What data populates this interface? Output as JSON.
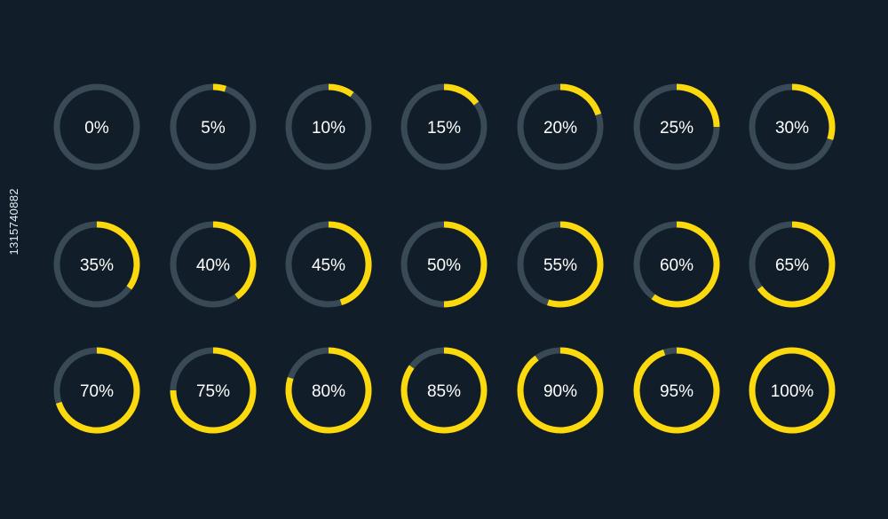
{
  "colors": {
    "background": "#111d28",
    "track": "#3a4956",
    "progress": "#fbd90c",
    "label": "#ffffff"
  },
  "rings": [
    {
      "label": "0%",
      "value": 0
    },
    {
      "label": "5%",
      "value": 5
    },
    {
      "label": "10%",
      "value": 10
    },
    {
      "label": "15%",
      "value": 15
    },
    {
      "label": "20%",
      "value": 20
    },
    {
      "label": "25%",
      "value": 25
    },
    {
      "label": "30%",
      "value": 30
    },
    {
      "label": "35%",
      "value": 35
    },
    {
      "label": "40%",
      "value": 40
    },
    {
      "label": "45%",
      "value": 45
    },
    {
      "label": "50%",
      "value": 50
    },
    {
      "label": "55%",
      "value": 55
    },
    {
      "label": "60%",
      "value": 60
    },
    {
      "label": "65%",
      "value": 65
    },
    {
      "label": "70%",
      "value": 70
    },
    {
      "label": "75%",
      "value": 75
    },
    {
      "label": "80%",
      "value": 80
    },
    {
      "label": "85%",
      "value": 85
    },
    {
      "label": "90%",
      "value": 90
    },
    {
      "label": "95%",
      "value": 95
    },
    {
      "label": "100%",
      "value": 100
    }
  ],
  "side_id": "1315740882"
}
